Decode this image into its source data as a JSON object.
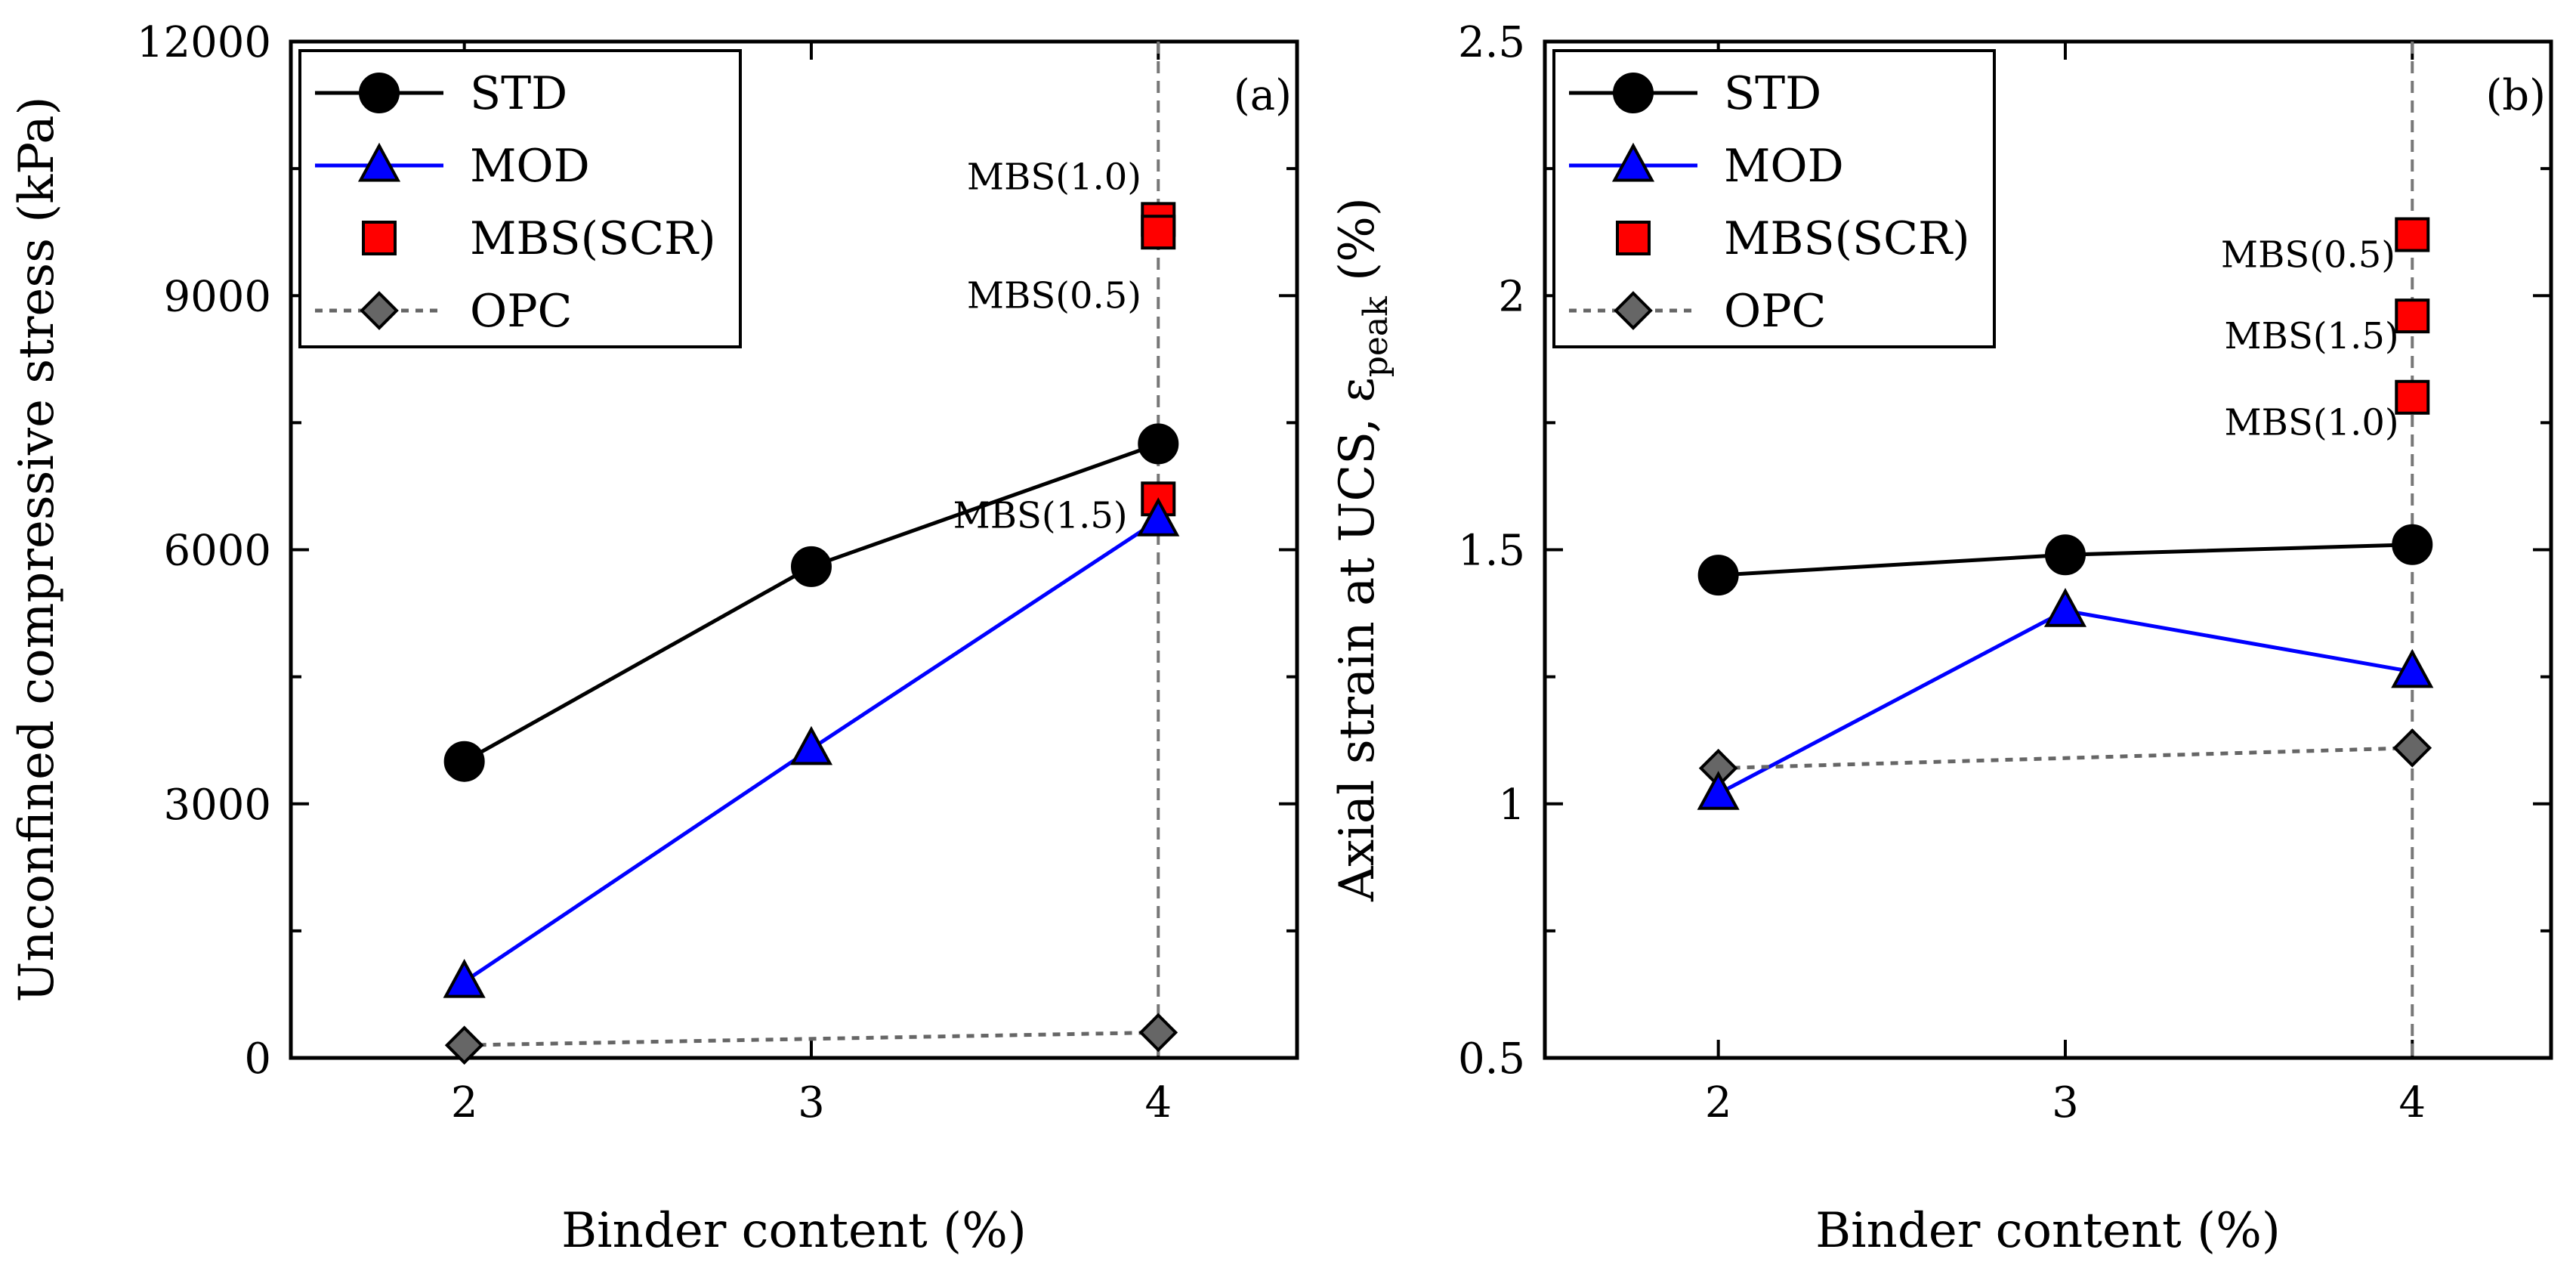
{
  "chart_data": [
    {
      "type": "line",
      "panel_label": "(a)",
      "xlabel": "Binder content (%)",
      "ylabel": "Unconfined compressive stress (kPa)",
      "xlim": [
        1.5,
        4.4
      ],
      "ylim": [
        0,
        12000
      ],
      "x_ticks": [
        2,
        3,
        4
      ],
      "y_ticks": [
        0,
        3000,
        6000,
        9000,
        12000
      ],
      "y_minor_ticks": [
        1500,
        4500,
        7500,
        10500
      ],
      "legend_position": "top-left",
      "vline_x": 4,
      "series": [
        {
          "name": "STD",
          "marker": "circle",
          "color": "#000000",
          "line": "solid",
          "x": [
            2,
            3,
            4
          ],
          "y": [
            3500,
            5800,
            7250
          ]
        },
        {
          "name": "MOD",
          "marker": "triangle",
          "color": "#0000ff",
          "line": "solid",
          "x": [
            2,
            3,
            4
          ],
          "y": [
            900,
            3650,
            6350
          ]
        },
        {
          "name": "MBS(SCR)",
          "marker": "square",
          "color": "#ff0000",
          "line": "none",
          "x": [
            4,
            4,
            4
          ],
          "y": [
            9900,
            9750,
            6600
          ]
        },
        {
          "name": "OPC",
          "marker": "diamond",
          "color": "#666666",
          "line": "dotted",
          "x": [
            2,
            4
          ],
          "y": [
            150,
            300
          ]
        }
      ],
      "annotations": [
        {
          "text": "MBS(1.0)",
          "x": 3.7,
          "y": 10400
        },
        {
          "text": "MBS(0.5)",
          "x": 3.7,
          "y": 9000
        },
        {
          "text": "MBS(1.5)",
          "x": 3.66,
          "y": 6400
        }
      ]
    },
    {
      "type": "line",
      "panel_label": "(b)",
      "xlabel": "Binder content (%)",
      "ylabel_main": "Axial strain at UCS, ε",
      "ylabel_sub": "peak",
      "ylabel_unit": " (%)",
      "xlim": [
        1.5,
        4.4
      ],
      "ylim": [
        0.5,
        2.5
      ],
      "x_ticks": [
        2,
        3,
        4
      ],
      "y_ticks": [
        "0.5",
        "1",
        "1.5",
        "2",
        "2.5"
      ],
      "y_minor_ticks": [
        0.75,
        1.25,
        1.75,
        2.25
      ],
      "legend_position": "top-left",
      "vline_x": 4,
      "series": [
        {
          "name": "STD",
          "marker": "circle",
          "color": "#000000",
          "line": "solid",
          "x": [
            2,
            3,
            4
          ],
          "y": [
            1.45,
            1.49,
            1.51
          ]
        },
        {
          "name": "MOD",
          "marker": "triangle",
          "color": "#0000ff",
          "line": "solid",
          "x": [
            2,
            3,
            4
          ],
          "y": [
            1.02,
            1.38,
            1.26
          ]
        },
        {
          "name": "MBS(SCR)",
          "marker": "square",
          "color": "#ff0000",
          "line": "none",
          "x": [
            4,
            4,
            4
          ],
          "y": [
            2.12,
            1.96,
            1.8
          ]
        },
        {
          "name": "OPC",
          "marker": "diamond",
          "color": "#666666",
          "line": "dotted",
          "x": [
            2,
            4
          ],
          "y": [
            1.07,
            1.11
          ]
        }
      ],
      "annotations": [
        {
          "text": "MBS(0.5)",
          "x": 3.7,
          "y": 2.08
        },
        {
          "text": "MBS(1.5)",
          "x": 3.71,
          "y": 1.92
        },
        {
          "text": "MBS(1.0)",
          "x": 3.71,
          "y": 1.75
        }
      ]
    }
  ]
}
